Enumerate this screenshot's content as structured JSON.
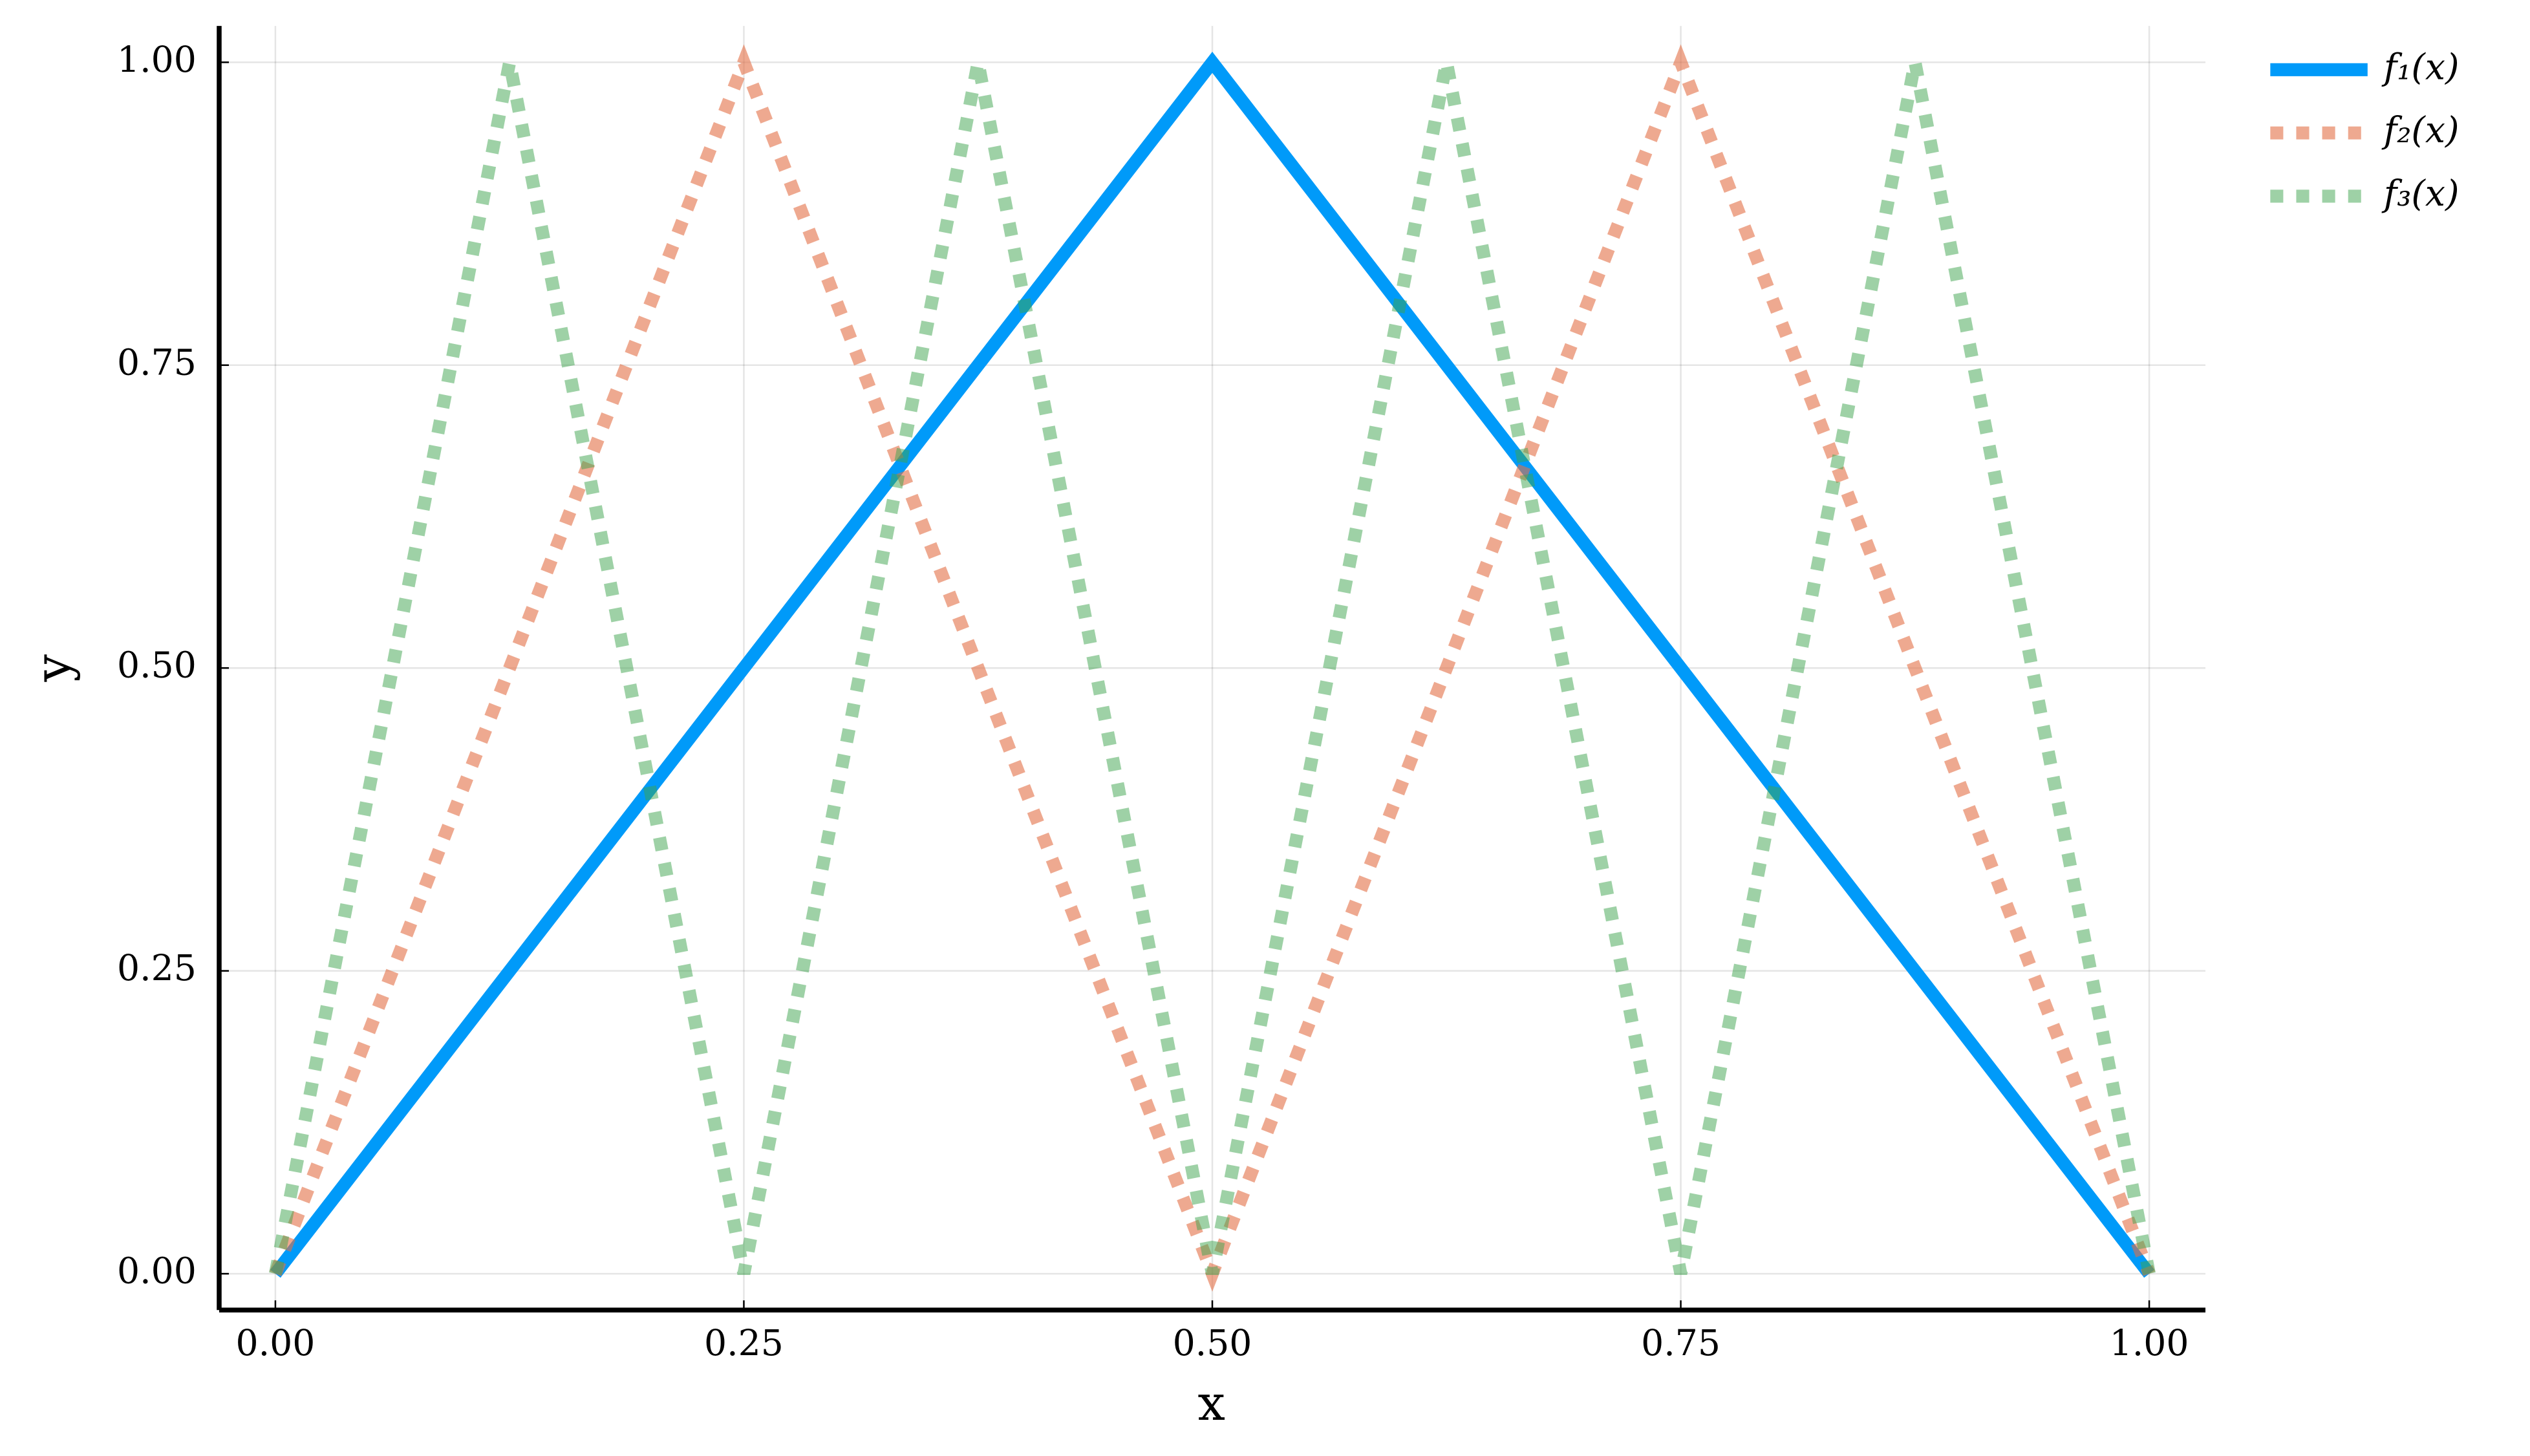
{
  "chart_data": {
    "type": "line",
    "x_label": "x",
    "y_label": "y",
    "xlim": [
      -0.03,
      1.03
    ],
    "ylim": [
      -0.03,
      1.03
    ],
    "xticks": [
      {
        "value": 0,
        "label": "0.00"
      },
      {
        "value": 0.25,
        "label": "0.25"
      },
      {
        "value": 0.5,
        "label": "0.50"
      },
      {
        "value": 0.75,
        "label": "0.75"
      },
      {
        "value": 1,
        "label": "1.00"
      }
    ],
    "yticks": [
      {
        "value": 0,
        "label": "0.00"
      },
      {
        "value": 0.25,
        "label": "0.25"
      },
      {
        "value": 0.5,
        "label": "0.50"
      },
      {
        "value": 0.75,
        "label": "0.75"
      },
      {
        "value": 1,
        "label": "1.00"
      }
    ],
    "grid": true,
    "legend": "outside-top-right",
    "series": [
      {
        "name": "f₁(x)",
        "color": "#009af9",
        "opacity": 1,
        "linestyle": "solid",
        "x": [
          0,
          0.5,
          1
        ],
        "values": [
          0,
          1,
          0
        ]
      },
      {
        "name": "f₂(x)",
        "color": "#e26f46",
        "opacity": 0.6,
        "linestyle": "dot",
        "x": [
          0,
          0.25,
          0.5,
          0.75,
          1
        ],
        "values": [
          0,
          1,
          0,
          1,
          0
        ]
      },
      {
        "name": "f₃(x)",
        "color": "#3da44d",
        "opacity": 0.5,
        "linestyle": "dot",
        "x": [
          0,
          0.125,
          0.25,
          0.375,
          0.5,
          0.625,
          0.75,
          0.875,
          1
        ],
        "values": [
          0,
          1,
          0,
          1,
          0,
          1,
          0,
          1,
          0
        ]
      }
    ]
  }
}
